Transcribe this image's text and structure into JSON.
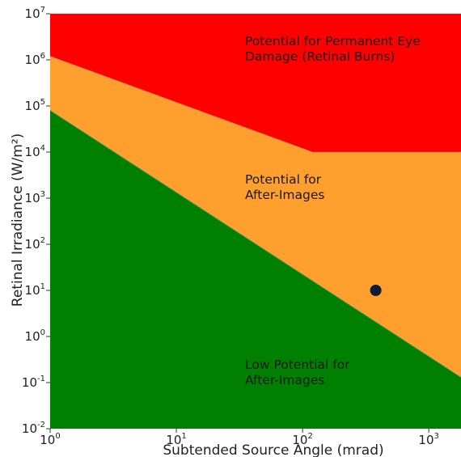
{
  "chart_data": {
    "type": "area",
    "x_scale": "log",
    "y_scale": "log",
    "xlabel": "Subtended Source Angle (mrad)",
    "ylabel": "Retinal Irradiance (W/m²)",
    "xlim": [
      1,
      1800
    ],
    "ylim": [
      0.01,
      10000000
    ],
    "x_ticks": [
      1,
      10,
      100,
      1000
    ],
    "y_ticks": [
      0.01,
      0.1,
      1,
      10,
      100,
      1000,
      10000,
      100000,
      1000000,
      10000000
    ],
    "tick_label_base": "10",
    "x_tick_exponents": [
      "0",
      "1",
      "2",
      "3"
    ],
    "y_tick_exponents": [
      "-2",
      "-1",
      "0",
      "1",
      "2",
      "3",
      "4",
      "5",
      "6",
      "7"
    ],
    "regions": [
      {
        "name": "red",
        "label_lines": [
          "Potential for Permanent Eye",
          "Damage (Retinal Burns)"
        ],
        "color": "#ff0000"
      },
      {
        "name": "orange",
        "label_lines": [
          "Potential for",
          "After-Images"
        ],
        "color": "#ff9f2e"
      },
      {
        "name": "green",
        "label_lines": [
          "Low Potential for",
          "After-Images"
        ],
        "color": "#008000"
      }
    ],
    "boundaries": {
      "burn_threshold": [
        [
          1,
          1200000
        ],
        [
          120,
          10000
        ],
        [
          1800,
          10000
        ]
      ],
      "after_image_threshold": [
        [
          1,
          80000
        ],
        [
          1800,
          0.13
        ]
      ]
    },
    "point": {
      "x": 380,
      "y": 10,
      "color": "#0d1a3a"
    }
  }
}
